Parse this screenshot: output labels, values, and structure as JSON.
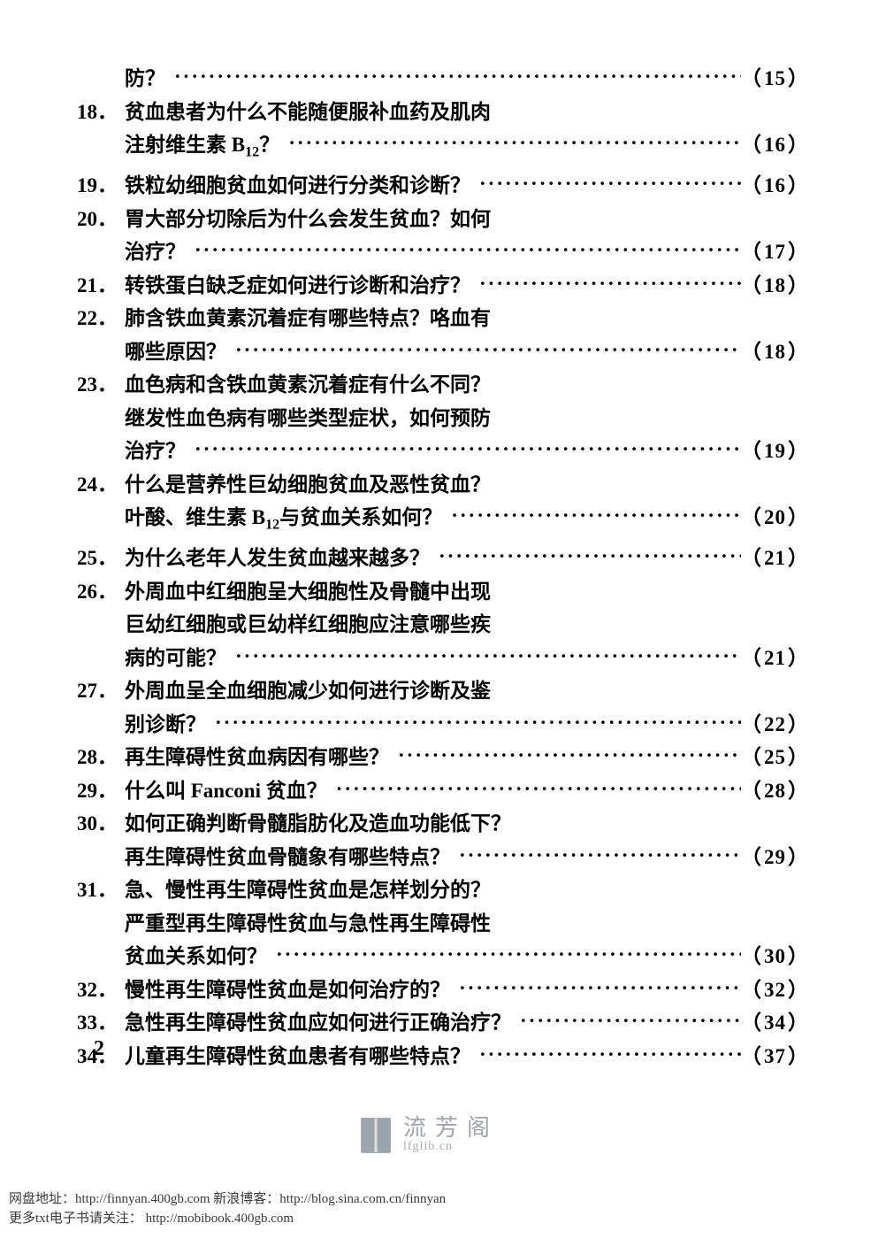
{
  "page_number_label": "2",
  "leader_char": "·",
  "entries": [
    {
      "num": "",
      "lines": [
        "防？"
      ],
      "page": "15"
    },
    {
      "num": "18．",
      "lines": [
        "贫血患者为什么不能随便服补血药及肌肉",
        "注射维生素 B₁₂？"
      ],
      "page": "16"
    },
    {
      "num": "19．",
      "lines": [
        "铁粒幼细胞贫血如何进行分类和诊断？"
      ],
      "page": "16"
    },
    {
      "num": "20．",
      "lines": [
        "胃大部分切除后为什么会发生贫血？如何",
        "治疗？"
      ],
      "page": "17"
    },
    {
      "num": "21．",
      "lines": [
        "转铁蛋白缺乏症如何进行诊断和治疗？"
      ],
      "page": "18"
    },
    {
      "num": "22．",
      "lines": [
        "肺含铁血黄素沉着症有哪些特点？咯血有",
        "哪些原因？"
      ],
      "page": "18"
    },
    {
      "num": "23．",
      "lines": [
        "血色病和含铁血黄素沉着症有什么不同？",
        "继发性血色病有哪些类型症状，如何预防",
        "治疗？"
      ],
      "page": "19"
    },
    {
      "num": "24．",
      "lines": [
        "什么是营养性巨幼细胞贫血及恶性贫血？",
        "叶酸、维生素 B₁₂与贫血关系如何？"
      ],
      "page": "20"
    },
    {
      "num": "25．",
      "lines": [
        "为什么老年人发生贫血越来越多？"
      ],
      "page": "21"
    },
    {
      "num": "26．",
      "lines": [
        "外周血中红细胞呈大细胞性及骨髓中出现",
        "巨幼红细胞或巨幼样红细胞应注意哪些疾",
        "病的可能？"
      ],
      "page": "21"
    },
    {
      "num": "27．",
      "lines": [
        "外周血呈全血细胞减少如何进行诊断及鉴",
        "别诊断？"
      ],
      "page": "22"
    },
    {
      "num": "28．",
      "lines": [
        "再生障碍性贫血病因有哪些？"
      ],
      "page": "25"
    },
    {
      "num": "29．",
      "lines": [
        "什么叫 Fanconi 贫血？"
      ],
      "page": "28"
    },
    {
      "num": "30．",
      "lines": [
        "如何正确判断骨髓脂肪化及造血功能低下？",
        "再生障碍性贫血骨髓象有哪些特点？"
      ],
      "page": "29"
    },
    {
      "num": "31．",
      "lines": [
        "急、慢性再生障碍性贫血是怎样划分的？",
        "严重型再生障碍性贫血与急性再生障碍性",
        "贫血关系如何？"
      ],
      "page": "30"
    },
    {
      "num": "32．",
      "lines": [
        "慢性再生障碍性贫血是如何治疗的？"
      ],
      "page": "32"
    },
    {
      "num": "33．",
      "lines": [
        "急性再生障碍性贫血应如何进行正确治疗？"
      ],
      "page": "34"
    },
    {
      "num": "34．",
      "lines": [
        "儿童再生障碍性贫血患者有哪些特点？"
      ],
      "page": "37"
    }
  ],
  "watermark": {
    "line1": "流芳阁",
    "line2": "lfglib.cn"
  },
  "footer": {
    "line1_prefix": "网盘地址：",
    "link1": "http://finnyan.400gb.com",
    "mid": " 新浪博客：",
    "link2": "http://blog.sina.com.cn/finnyan",
    "line2_prefix": "更多txt电子书请关注： ",
    "link3": "http://mobibook.400gb.com"
  }
}
